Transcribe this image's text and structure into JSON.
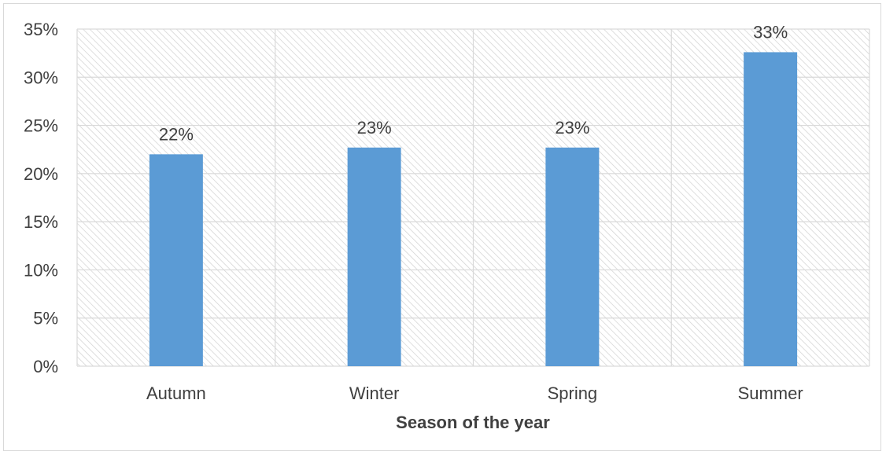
{
  "chart_data": {
    "type": "bar",
    "title": "",
    "xlabel": "Season of the year",
    "ylabel": "",
    "categories": [
      "Autumn",
      "Winter",
      "Spring",
      "Summer"
    ],
    "values": [
      22,
      22.7,
      22.7,
      32.6
    ],
    "data_labels": [
      "22%",
      "23%",
      "23%",
      "33%"
    ],
    "ylim": [
      0,
      35
    ],
    "yticks": [
      0,
      5,
      10,
      15,
      20,
      25,
      30,
      35
    ],
    "ytick_labels": [
      "0%",
      "5%",
      "10%",
      "15%",
      "20%",
      "25%",
      "30%",
      "35%"
    ],
    "grid": true,
    "legend": "none",
    "colors": {
      "bar": "#5b9bd5",
      "grid": "#d9d9d9",
      "hatch": "#d0d0d0",
      "text": "#404040"
    }
  }
}
